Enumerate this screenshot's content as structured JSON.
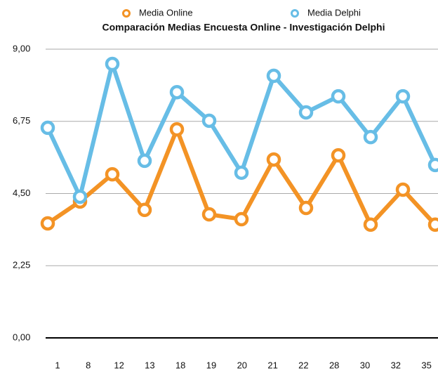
{
  "chart_data": {
    "type": "line",
    "title": "Comparación Medias Encuesta Online - Investigación Delphi",
    "categories": [
      "1",
      "8",
      "12",
      "13",
      "18",
      "19",
      "20",
      "21",
      "22",
      "28",
      "30",
      "32",
      "35"
    ],
    "series": [
      {
        "name": "Media Online",
        "color": "#f39325",
        "values": [
          3.57,
          4.25,
          5.1,
          3.99,
          6.5,
          3.85,
          3.7,
          5.56,
          4.05,
          5.69,
          3.53,
          4.62,
          3.53
        ]
      },
      {
        "name": "Media Delphi",
        "color": "#67bde6",
        "values": [
          6.55,
          4.4,
          8.54,
          5.52,
          7.66,
          6.77,
          5.15,
          8.17,
          7.03,
          7.53,
          6.26,
          7.53,
          5.39
        ]
      }
    ],
    "ylim": [
      0,
      9
    ],
    "yticks": [
      {
        "value": 0,
        "label": "0,00"
      },
      {
        "value": 2.25,
        "label": "2,25"
      },
      {
        "value": 4.5,
        "label": "4,50"
      },
      {
        "value": 6.75,
        "label": "6,75"
      },
      {
        "value": 9,
        "label": "9,00"
      }
    ],
    "grid": true,
    "legend": "top"
  }
}
